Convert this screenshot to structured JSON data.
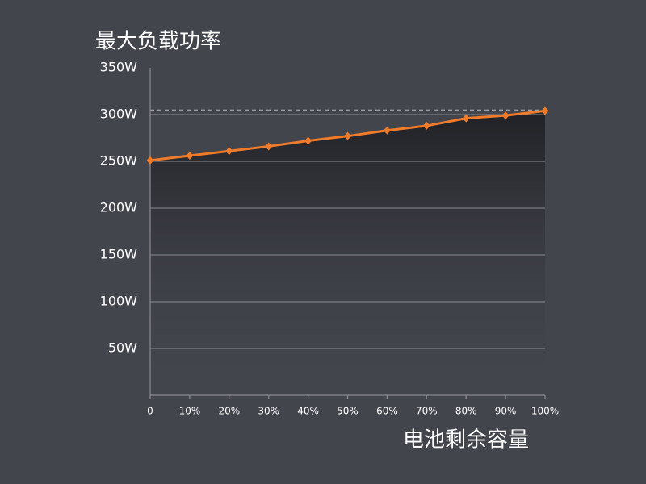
{
  "chart_data": {
    "type": "line",
    "title": "最大负载功率",
    "x_label": "电池剩余容量",
    "x": [
      0,
      10,
      20,
      30,
      40,
      50,
      60,
      70,
      80,
      90,
      100
    ],
    "series": [
      {
        "color": "#f07b2a",
        "values": [
          251,
          256,
          261,
          266,
          272,
          277,
          283,
          288,
          296,
          299,
          304
        ]
      }
    ],
    "reference_line": 305,
    "xlim": [
      0,
      100
    ],
    "xticks": [
      0,
      {
        "value": 10,
        "label": "10%"
      },
      {
        "value": 20,
        "label": "20%"
      },
      {
        "value": 30,
        "label": "30%"
      },
      {
        "value": 40,
        "label": "40%"
      },
      {
        "value": 50,
        "label": "50%"
      },
      {
        "value": 60,
        "label": "60%"
      },
      {
        "value": 70,
        "label": "70%"
      },
      {
        "value": 80,
        "label": "80%"
      },
      {
        "value": 90,
        "label": "90%"
      },
      {
        "value": 100,
        "label": "100%"
      }
    ],
    "ylim": [
      0,
      350
    ],
    "yticks": [
      {
        "value": 50,
        "label": "50W"
      },
      {
        "value": 100,
        "label": "100W"
      },
      {
        "value": 150,
        "label": "150W"
      },
      {
        "value": 200,
        "label": "200W"
      },
      {
        "value": 250,
        "label": "250W"
      },
      {
        "value": 300,
        "label": "300W"
      },
      {
        "value": 350,
        "label": "350W"
      }
    ],
    "grid": true
  }
}
